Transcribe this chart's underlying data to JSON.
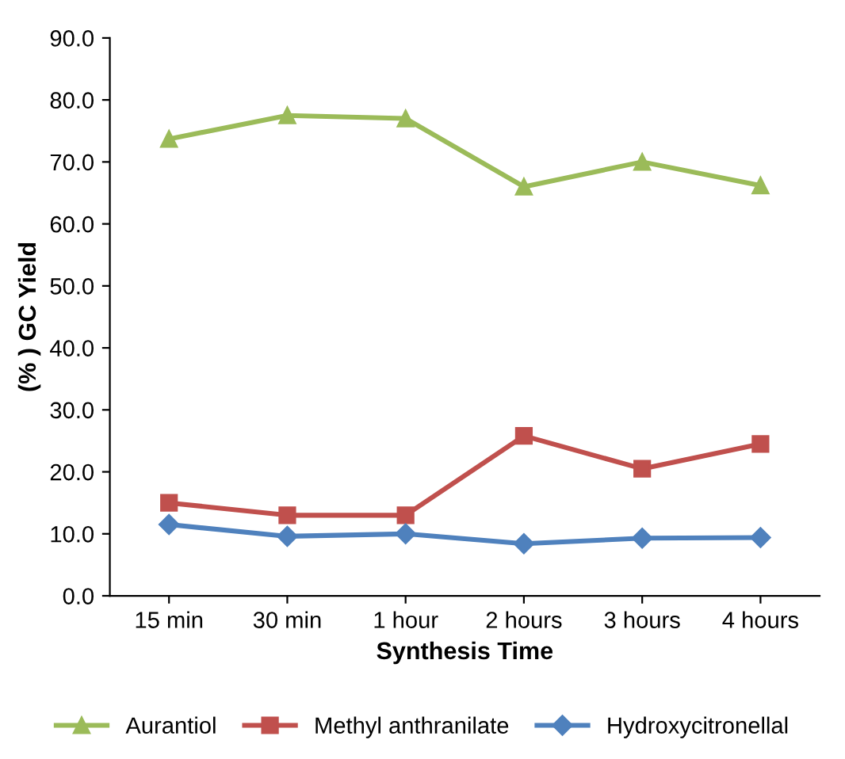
{
  "chart_data": {
    "type": "line",
    "xlabel": "Synthesis Time",
    "ylabel": "(% ) GC Yield",
    "categories": [
      "15 min",
      "30 min",
      "1 hour",
      "2 hours",
      "3 hours",
      "4 hours"
    ],
    "series": [
      {
        "name": "Aurantiol",
        "color": "#9bbb59",
        "marker": "triangle",
        "values": [
          73.7,
          77.5,
          77.0,
          66.0,
          70.0,
          66.2
        ]
      },
      {
        "name": "Methyl anthranilate",
        "color": "#c0504d",
        "marker": "square",
        "values": [
          15.0,
          13.0,
          13.0,
          25.8,
          20.5,
          24.5
        ]
      },
      {
        "name": "Hydroxycitronellal",
        "color": "#4f81bd",
        "marker": "diamond",
        "values": [
          11.5,
          9.6,
          10.0,
          8.4,
          9.3,
          9.4
        ]
      }
    ],
    "ylim": [
      0,
      90
    ],
    "yticks": [
      {
        "value": 0,
        "label": "0.0"
      },
      {
        "value": 10,
        "label": "10.0"
      },
      {
        "value": 20,
        "label": "20.0"
      },
      {
        "value": 30,
        "label": "30.0"
      },
      {
        "value": 40,
        "label": "40.0"
      },
      {
        "value": 50,
        "label": "50.0"
      },
      {
        "value": 60,
        "label": "60.0"
      },
      {
        "value": 70,
        "label": "70.0"
      },
      {
        "value": 80,
        "label": "80.0"
      },
      {
        "value": 90,
        "label": "90.0"
      }
    ],
    "grid": false,
    "legend": "bottom"
  }
}
